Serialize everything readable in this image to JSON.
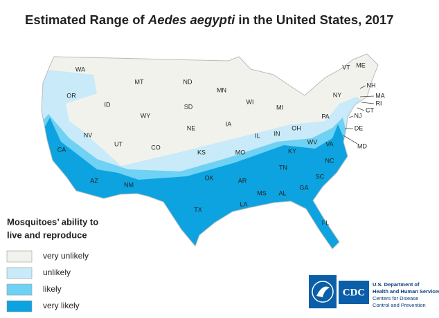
{
  "title": {
    "before": "Estimated Range of ",
    "species": "Aedes aegypti",
    "after": " in the United States, 2017"
  },
  "states": [
    "WA",
    "OR",
    "CA",
    "NV",
    "ID",
    "MT",
    "WY",
    "UT",
    "AZ",
    "NM",
    "CO",
    "ND",
    "SD",
    "NE",
    "KS",
    "OK",
    "TX",
    "MN",
    "IA",
    "MO",
    "AR",
    "LA",
    "WI",
    "IL",
    "MS",
    "MI",
    "IN",
    "KY",
    "TN",
    "AL",
    "OH",
    "WV",
    "GA",
    "FL",
    "SC",
    "NC",
    "VA",
    "PA",
    "NY",
    "VT",
    "ME",
    "NH",
    "MA",
    "RI",
    "CT",
    "NJ",
    "DE",
    "MD"
  ],
  "legend": {
    "title": [
      "Mosquitoes’ ability to",
      "live and reproduce"
    ],
    "items": [
      {
        "label": "very unlikely",
        "color": "#f2f2ed"
      },
      {
        "label": "unlikely",
        "color": "#c9eaf8"
      },
      {
        "label": "likely",
        "color": "#6fd1f3"
      },
      {
        "label": "very likely",
        "color": "#0ca3e0"
      }
    ]
  },
  "logo": {
    "mark": "CDC",
    "lines": [
      "U.S. Department of",
      "Health and Human Services",
      "Centers for Disease",
      "Control and Prevention"
    ]
  }
}
